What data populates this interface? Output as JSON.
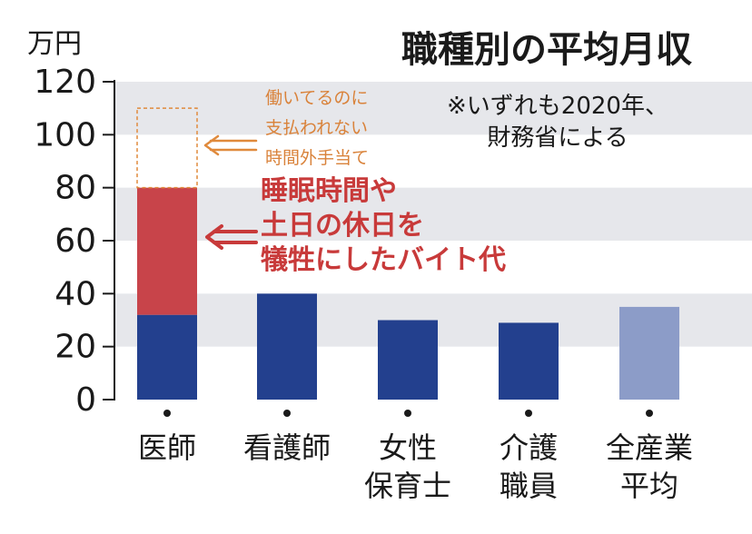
{
  "chart_data": {
    "type": "bar",
    "title": "職種別の平均月収",
    "unit_label": "万円",
    "ylim": [
      0,
      120
    ],
    "y_ticks": [
      "0",
      "20",
      "40",
      "60",
      "80",
      "100",
      "120"
    ],
    "categories": [
      [
        "医師"
      ],
      [
        "看護師"
      ],
      [
        "女性",
        "保育士"
      ],
      [
        "介護",
        "職員"
      ],
      [
        "全産業",
        "平均"
      ]
    ],
    "series": [
      {
        "values": [
          32,
          40,
          30,
          29,
          35
        ]
      },
      {
        "values": [
          48,
          0,
          0,
          0,
          0
        ]
      },
      {
        "values": [
          30,
          0,
          0,
          0,
          0
        ]
      }
    ],
    "colors": {
      "base": "#23408e",
      "all_industry": "#8c9cc8",
      "side_job": "#c8444a",
      "unpaid_overtime": "#e08a3c",
      "band": "#e6e7eb",
      "annotation_red": "#c83a3a",
      "annotation_orange": "#d9823a"
    },
    "annotations": {
      "unpaid_overtime": [
        "働いてるのに",
        "支払われない",
        "時間外手当て"
      ],
      "side_job": [
        "睡眠時間や",
        "土日の休日を",
        "犠牲にしたバイト代"
      ],
      "source_note": [
        "※いずれも2020年、",
        "財務省による"
      ]
    },
    "grid": "alternating-horizontal-bands",
    "legend": "none"
  }
}
